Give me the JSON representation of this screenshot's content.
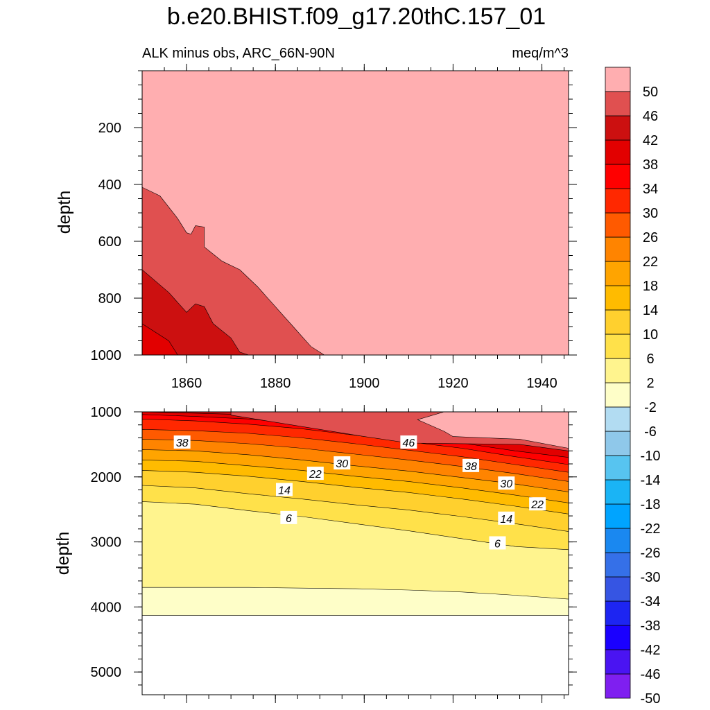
{
  "chart_data": {
    "type": "contour",
    "title": "b.e20.BHIST.f09_g17.20thC.157_01",
    "subtitle_left": "ALK minus obs, ARC_66N-90N",
    "subtitle_right": "meq/m^3",
    "xlabel": "",
    "ylabel": "depth",
    "xlim": [
      1850,
      1946
    ],
    "x_ticks": [
      "1860",
      "1880",
      "1900",
      "1920",
      "1940"
    ],
    "colorbar": {
      "colors": [
        "#7f1ff0",
        "#4a14f2",
        "#1a00ff",
        "#1d25f2",
        "#3655e3",
        "#3570e8",
        "#1a88f0",
        "#00a4ff",
        "#1ab4f5",
        "#57c4f0",
        "#8fc8ea",
        "#b2dcf2",
        "#fefec8",
        "#fff48e",
        "#ffe14a",
        "#ffd02e",
        "#ffbb00",
        "#ffa400",
        "#ff8400",
        "#ff5a00",
        "#ff2800",
        "#ff0000",
        "#e20000",
        "#cc1010",
        "#e05050",
        "#ffaeb0"
      ],
      "labels": [
        "50",
        "46",
        "42",
        "38",
        "34",
        "30",
        "26",
        "22",
        "18",
        "14",
        "10",
        "6",
        "2",
        "-2",
        "-6",
        "-10",
        "-14",
        "-18",
        "-22",
        "-26",
        "-30",
        "-34",
        "-38",
        "-42",
        "-46",
        "-50"
      ]
    },
    "panels": [
      {
        "name": "upper",
        "ylim": [
          0,
          1000
        ],
        "y_ticks": [
          "200",
          "400",
          "600",
          "800",
          "1000"
        ],
        "ylabel": "depth",
        "regions": [
          {
            "level": ">50",
            "color": "#ffaeb0",
            "boundary": [
              [
                1850,
                0
              ],
              [
                1946,
                0
              ],
              [
                1946,
                1000
              ],
              [
                1850,
                1000
              ]
            ]
          },
          {
            "level": "46-50",
            "color": "#e05050",
            "boundary": [
              [
                1850,
                410
              ],
              [
                1854,
                440
              ],
              [
                1858,
                520
              ],
              [
                1860,
                570
              ],
              [
                1861,
                575
              ],
              [
                1862,
                545
              ],
              [
                1864,
                550
              ],
              [
                1864,
                620
              ],
              [
                1868,
                670
              ],
              [
                1872,
                700
              ],
              [
                1876,
                760
              ],
              [
                1880,
                830
              ],
              [
                1884,
                900
              ],
              [
                1888,
                970
              ],
              [
                1891,
                1000
              ],
              [
                1895,
                1000
              ],
              [
                1850,
                1000
              ]
            ]
          },
          {
            "level": "42-46",
            "color": "#cc1010",
            "boundary": [
              [
                1850,
                700
              ],
              [
                1856,
                780
              ],
              [
                1860,
                850
              ],
              [
                1862,
                820
              ],
              [
                1864,
                830
              ],
              [
                1866,
                890
              ],
              [
                1870,
                940
              ],
              [
                1872,
                990
              ],
              [
                1874,
                1000
              ],
              [
                1850,
                1000
              ]
            ]
          },
          {
            "level": "38-42",
            "color": "#e20000",
            "boundary": [
              [
                1850,
                890
              ],
              [
                1856,
                950
              ],
              [
                1858,
                1000
              ],
              [
                1850,
                1000
              ]
            ]
          }
        ]
      },
      {
        "name": "lower",
        "ylim": [
          1000,
          5350
        ],
        "y_ticks": [
          "1000",
          "2000",
          "3000",
          "4000",
          "5000"
        ],
        "ylabel": "depth",
        "shallow_color": "#cc1010",
        "bottom_depth": 4130,
        "top_region": {
          "level": ">50 / 46-50",
          "color": "#e05050",
          "boundary": [
            [
              1890,
              1000
            ],
            [
              1946,
              1000
            ],
            [
              1946,
              1600
            ],
            [
              1935,
              1500
            ],
            [
              1910,
              1480
            ],
            [
              1900,
              1380
            ],
            [
              1870,
              1050
            ],
            [
              1870,
              1000
            ]
          ]
        },
        "top_region_inner": {
          "level": ">50",
          "color": "#ffaeb0",
          "boundary": [
            [
              1918,
              1000
            ],
            [
              1946,
              1000
            ],
            [
              1946,
              1560
            ],
            [
              1935,
              1420
            ],
            [
              1920,
              1380
            ],
            [
              1918,
              1300
            ],
            [
              1914,
              1180
            ],
            [
              1912,
              1120
            ]
          ]
        },
        "contours": [
          {
            "level": 42,
            "color": "#e20000",
            "depths": [
              1000,
              1020,
              1045,
              1100,
              1180,
              1250,
              1340,
              1430,
              1500
            ]
          },
          {
            "level": 38,
            "color": "#ff0000",
            "depths": [
              1040,
              1070,
              1110,
              1180,
              1280,
              1380,
              1480,
              1600,
              1700
            ]
          },
          {
            "level": 34,
            "color": "#ff2800",
            "depths": [
              1110,
              1140,
              1190,
              1260,
              1360,
              1460,
              1560,
              1690,
              1810
            ]
          },
          {
            "level": 30,
            "color": "#ff5a00",
            "depths": [
              1270,
              1290,
              1330,
              1400,
              1490,
              1590,
              1690,
              1810,
              1930
            ]
          },
          {
            "level": 26,
            "color": "#ff8400",
            "depths": [
              1420,
              1440,
              1490,
              1560,
              1650,
              1740,
              1840,
              1950,
              2070
            ]
          },
          {
            "level": 22,
            "color": "#ffa400",
            "depths": [
              1580,
              1600,
              1660,
              1740,
              1830,
              1910,
              2010,
              2110,
              2230
            ]
          },
          {
            "level": 18,
            "color": "#ffbb00",
            "depths": [
              1740,
              1760,
              1830,
              1900,
              1990,
              2070,
              2170,
              2280,
              2400
            ]
          },
          {
            "level": 14,
            "color": "#ffd02e",
            "depths": [
              1900,
              1930,
              1990,
              2070,
              2160,
              2240,
              2340,
              2450,
              2570
            ]
          },
          {
            "level": 10,
            "color": "#ffe14a",
            "depths": [
              2130,
              2170,
              2260,
              2340,
              2430,
              2510,
              2610,
              2720,
              2840
            ]
          },
          {
            "level": 6,
            "color": "#fff48e",
            "depths": [
              2380,
              2420,
              2520,
              2610,
              2720,
              2830,
              2950,
              3070,
              3120
            ]
          },
          {
            "level": 2,
            "color": "#fefec8",
            "depths": [
              3700,
              3700,
              3700,
              3710,
              3720,
              3740,
              3770,
              3820,
              3880
            ]
          }
        ],
        "contour_labels": [
          {
            "text": "38",
            "x": 1859,
            "depth": 1470
          },
          {
            "text": "46",
            "x": 1910,
            "depth": 1470
          },
          {
            "text": "30",
            "x": 1895,
            "depth": 1790
          },
          {
            "text": "38",
            "x": 1924,
            "depth": 1830
          },
          {
            "text": "22",
            "x": 1889,
            "depth": 1950
          },
          {
            "text": "30",
            "x": 1932,
            "depth": 2100
          },
          {
            "text": "14",
            "x": 1882,
            "depth": 2200
          },
          {
            "text": "22",
            "x": 1939,
            "depth": 2420
          },
          {
            "text": "6",
            "x": 1883,
            "depth": 2630
          },
          {
            "text": "14",
            "x": 1932,
            "depth": 2640
          },
          {
            "text": "6",
            "x": 1930,
            "depth": 3020
          }
        ]
      }
    ]
  }
}
